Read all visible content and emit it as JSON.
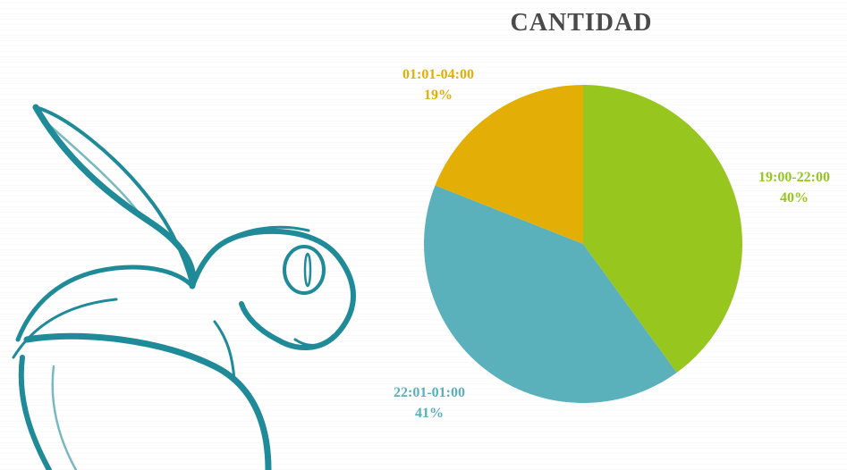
{
  "chart_data": {
    "type": "pie",
    "title": "CANTIDAD",
    "categories": [
      "19:00-22:00",
      "22:01-01:00",
      "01:01-04:00"
    ],
    "values": [
      40,
      41,
      19
    ],
    "value_labels": [
      "40%",
      "41%",
      "19%"
    ],
    "colors": [
      "#97c61f",
      "#5ab0bb",
      "#e3ae06"
    ]
  },
  "illustration": {
    "icon": "turtle-outline-icon",
    "line_color": "#1f8a98"
  }
}
